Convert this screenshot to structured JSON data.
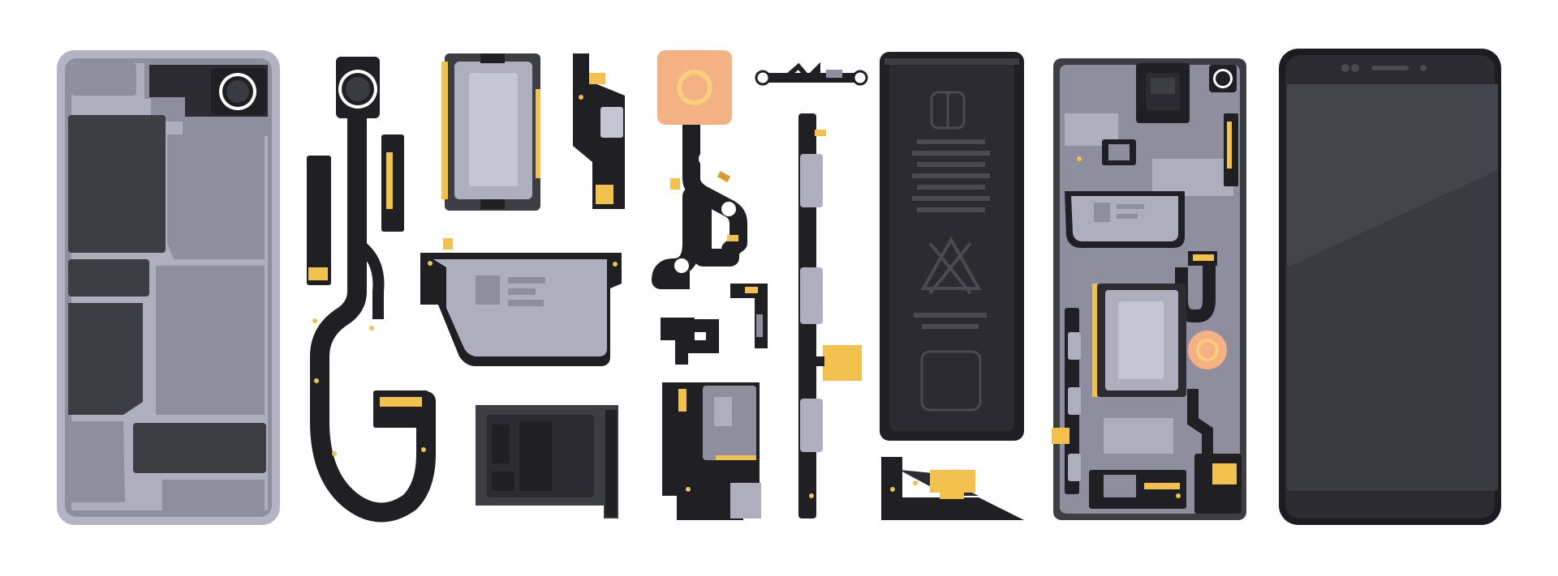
{
  "scene": {
    "kind": "exploded-smartphone-illustration",
    "background": "#ffffff"
  },
  "palette": {
    "flex_black": "#1f1f24",
    "dark": "#2b2b31",
    "board_gray": "#8e8e9e",
    "board_light": "#aeaebe",
    "plate_light": "#c5c5d3",
    "frame": "#b3b3c4",
    "gold": "#f2c14e",
    "gold_dark": "#d99a2b",
    "peach": "#f4b183",
    "peach_ring": "#f9d07a",
    "screen": "#3a3a42",
    "phone_body": "#1c1c21"
  },
  "components": [
    {
      "name": "back-cover-panel",
      "icon": "back-plate-icon"
    },
    {
      "name": "rear-camera-flex-cable",
      "icon": "camera-flex-icon"
    },
    {
      "name": "main-logic-chip",
      "icon": "chip-icon"
    },
    {
      "name": "small-flex-connector",
      "icon": "connector-icon"
    },
    {
      "name": "fingerprint-sensor-flex",
      "icon": "fingerprint-icon"
    },
    {
      "name": "speaker-module",
      "icon": "speaker-icon"
    },
    {
      "name": "sim-card-tray",
      "icon": "sim-tray-icon"
    },
    {
      "name": "power-volume-button-flex",
      "icon": "button-flex-icon"
    },
    {
      "name": "battery-pack",
      "icon": "battery-icon"
    },
    {
      "name": "assembled-mainboard",
      "icon": "motherboard-icon"
    },
    {
      "name": "front-display-phone",
      "icon": "phone-front-icon"
    }
  ]
}
